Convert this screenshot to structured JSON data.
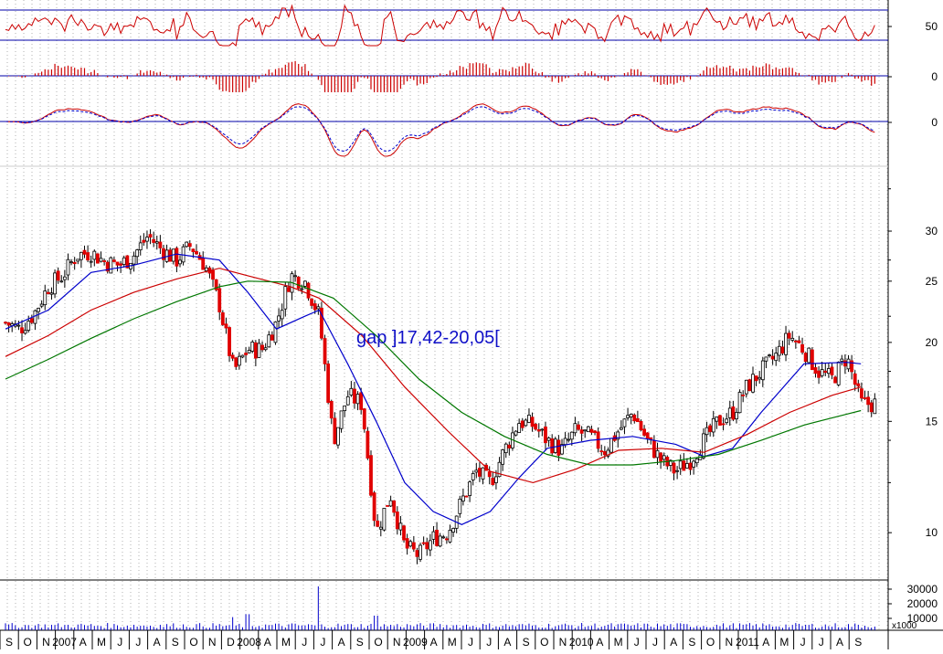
{
  "chart_data": {
    "type": "candlestick",
    "title": "",
    "annotation": "gap ]17,42-20,05[",
    "colors": {
      "up_body": "#ffffff",
      "down_body": "#e00000",
      "wick": "#000000",
      "ma_short": "#0000cc",
      "ma_medium": "#cc0000",
      "ma_long": "#007700",
      "panel_line": "#0000aa",
      "grid": "#b0b0b0",
      "indicator_line": "#cc0000",
      "volume_bar": "#0000cc"
    },
    "x_axis": {
      "labels": [
        "S",
        "O",
        "N",
        "2007",
        "A",
        "M",
        "J",
        "J",
        "A",
        "S",
        "O",
        "N",
        "D",
        "2008",
        "A",
        "M",
        "J",
        "J",
        "A",
        "S",
        "O",
        "N",
        "2009",
        "A",
        "M",
        "J",
        "J",
        "A",
        "S",
        "O",
        "N",
        "2010",
        "A",
        "M",
        "J",
        "J",
        "A",
        "S",
        "O",
        "N",
        "2011",
        "A",
        "M",
        "J",
        "J",
        "A",
        "S"
      ],
      "start": "2006-08",
      "end": "2011-09"
    },
    "price_panel": {
      "scale": "log",
      "y_ticks": [
        "30",
        "25",
        "20",
        "15",
        "10"
      ],
      "y_range": [
        8.5,
        37
      ],
      "close": [
        {
          "date": "2006-08",
          "value": 21.5
        },
        {
          "date": "2006-09",
          "value": 21.0
        },
        {
          "date": "2006-10",
          "value": 22.2
        },
        {
          "date": "2006-11",
          "value": 24.5
        },
        {
          "date": "2006-12",
          "value": 25.5
        },
        {
          "date": "2007-01",
          "value": 27.5
        },
        {
          "date": "2007-02",
          "value": 27.8
        },
        {
          "date": "2007-03",
          "value": 26.8
        },
        {
          "date": "2007-04",
          "value": 26.5
        },
        {
          "date": "2007-05",
          "value": 27.5
        },
        {
          "date": "2007-06",
          "value": 29.5
        },
        {
          "date": "2007-07",
          "value": 28.0
        },
        {
          "date": "2007-08",
          "value": 27.0
        },
        {
          "date": "2007-09",
          "value": 28.5
        },
        {
          "date": "2007-10",
          "value": 26.5
        },
        {
          "date": "2007-11",
          "value": 23.0
        },
        {
          "date": "2007-12",
          "value": 18.0
        },
        {
          "date": "2008-01",
          "value": 19.5
        },
        {
          "date": "2008-02",
          "value": 19.5
        },
        {
          "date": "2008-03",
          "value": 21.5
        },
        {
          "date": "2008-04",
          "value": 25.5
        },
        {
          "date": "2008-05",
          "value": 25.0
        },
        {
          "date": "2008-06",
          "value": 22.0
        },
        {
          "date": "2008-07",
          "value": 14.0
        },
        {
          "date": "2008-08",
          "value": 16.5
        },
        {
          "date": "2008-09",
          "value": 16.0
        },
        {
          "date": "2008-10",
          "value": 10.0
        },
        {
          "date": "2008-11",
          "value": 11.5
        },
        {
          "date": "2008-12",
          "value": 9.5
        },
        {
          "date": "2009-01",
          "value": 9.2
        },
        {
          "date": "2009-02",
          "value": 9.8
        },
        {
          "date": "2009-03",
          "value": 10.0
        },
        {
          "date": "2009-04",
          "value": 11.2
        },
        {
          "date": "2009-05",
          "value": 12.5
        },
        {
          "date": "2009-06",
          "value": 12.0
        },
        {
          "date": "2009-07",
          "value": 13.5
        },
        {
          "date": "2009-08",
          "value": 15.0
        },
        {
          "date": "2009-09",
          "value": 14.8
        },
        {
          "date": "2009-10",
          "value": 14.0
        },
        {
          "date": "2009-11",
          "value": 13.5
        },
        {
          "date": "2009-12",
          "value": 14.5
        },
        {
          "date": "2010-01",
          "value": 14.2
        },
        {
          "date": "2010-02",
          "value": 13.5
        },
        {
          "date": "2010-03",
          "value": 14.5
        },
        {
          "date": "2010-04",
          "value": 15.5
        },
        {
          "date": "2010-05",
          "value": 14.0
        },
        {
          "date": "2010-06",
          "value": 13.0
        },
        {
          "date": "2010-07",
          "value": 12.5
        },
        {
          "date": "2010-08",
          "value": 13.0
        },
        {
          "date": "2010-09",
          "value": 14.0
        },
        {
          "date": "2010-10",
          "value": 15.0
        },
        {
          "date": "2010-11",
          "value": 15.5
        },
        {
          "date": "2010-12",
          "value": 17.0
        },
        {
          "date": "2011-01",
          "value": 18.0
        },
        {
          "date": "2011-02",
          "value": 19.0
        },
        {
          "date": "2011-03",
          "value": 20.5
        },
        {
          "date": "2011-04",
          "value": 19.5
        },
        {
          "date": "2011-05",
          "value": 18.0
        },
        {
          "date": "2011-06",
          "value": 17.5
        },
        {
          "date": "2011-07",
          "value": 19.0
        },
        {
          "date": "2011-08",
          "value": 16.0
        }
      ],
      "moving_averages": [
        {
          "color": "ma_short",
          "points": [
            {
              "date": "2006-08",
              "value": 21.0
            },
            {
              "date": "2006-11",
              "value": 22.5
            },
            {
              "date": "2007-02",
              "value": 25.8
            },
            {
              "date": "2007-05",
              "value": 26.5
            },
            {
              "date": "2007-08",
              "value": 27.6
            },
            {
              "date": "2007-11",
              "value": 27.0
            },
            {
              "date": "2008-01",
              "value": 24.0
            },
            {
              "date": "2008-03",
              "value": 21.0
            },
            {
              "date": "2008-05",
              "value": 22.0
            },
            {
              "date": "2008-06",
              "value": 22.5
            },
            {
              "date": "2008-08",
              "value": 18.5
            },
            {
              "date": "2008-10",
              "value": 15.0
            },
            {
              "date": "2008-12",
              "value": 12.0
            },
            {
              "date": "2009-02",
              "value": 10.8
            },
            {
              "date": "2009-04",
              "value": 10.3
            },
            {
              "date": "2009-06",
              "value": 10.8
            },
            {
              "date": "2009-08",
              "value": 12.2
            },
            {
              "date": "2009-10",
              "value": 13.6
            },
            {
              "date": "2010-01",
              "value": 14.0
            },
            {
              "date": "2010-04",
              "value": 14.2
            },
            {
              "date": "2010-07",
              "value": 13.8
            },
            {
              "date": "2010-09",
              "value": 13.2
            },
            {
              "date": "2010-11",
              "value": 13.6
            },
            {
              "date": "2011-01",
              "value": 15.5
            },
            {
              "date": "2011-04",
              "value": 18.5
            },
            {
              "date": "2011-07",
              "value": 18.6
            },
            {
              "date": "2011-08",
              "value": 18.5
            }
          ]
        },
        {
          "color": "ma_medium",
          "points": [
            {
              "date": "2006-08",
              "value": 19.0
            },
            {
              "date": "2006-11",
              "value": 20.5
            },
            {
              "date": "2007-02",
              "value": 22.5
            },
            {
              "date": "2007-05",
              "value": 24.0
            },
            {
              "date": "2007-08",
              "value": 25.2
            },
            {
              "date": "2007-11",
              "value": 26.2
            },
            {
              "date": "2008-01",
              "value": 25.5
            },
            {
              "date": "2008-04",
              "value": 24.5
            },
            {
              "date": "2008-06",
              "value": 23.5
            },
            {
              "date": "2008-09",
              "value": 20.5
            },
            {
              "date": "2008-12",
              "value": 17.0
            },
            {
              "date": "2009-03",
              "value": 14.5
            },
            {
              "date": "2009-06",
              "value": 12.5
            },
            {
              "date": "2009-09",
              "value": 12.0
            },
            {
              "date": "2009-12",
              "value": 12.6
            },
            {
              "date": "2010-03",
              "value": 13.5
            },
            {
              "date": "2010-06",
              "value": 13.6
            },
            {
              "date": "2010-09",
              "value": 13.4
            },
            {
              "date": "2010-12",
              "value": 14.3
            },
            {
              "date": "2011-03",
              "value": 15.5
            },
            {
              "date": "2011-06",
              "value": 16.5
            },
            {
              "date": "2011-08",
              "value": 17.0
            }
          ]
        },
        {
          "color": "ma_long",
          "points": [
            {
              "date": "2006-08",
              "value": 17.5
            },
            {
              "date": "2006-11",
              "value": 18.8
            },
            {
              "date": "2007-02",
              "value": 20.3
            },
            {
              "date": "2007-05",
              "value": 21.8
            },
            {
              "date": "2007-08",
              "value": 23.2
            },
            {
              "date": "2007-11",
              "value": 24.5
            },
            {
              "date": "2008-01",
              "value": 25.0
            },
            {
              "date": "2008-04",
              "value": 24.9
            },
            {
              "date": "2008-07",
              "value": 23.5
            },
            {
              "date": "2008-10",
              "value": 20.5
            },
            {
              "date": "2009-01",
              "value": 17.5
            },
            {
              "date": "2009-04",
              "value": 15.5
            },
            {
              "date": "2009-07",
              "value": 14.2
            },
            {
              "date": "2009-10",
              "value": 13.3
            },
            {
              "date": "2010-01",
              "value": 12.8
            },
            {
              "date": "2010-04",
              "value": 12.8
            },
            {
              "date": "2010-07",
              "value": 13.0
            },
            {
              "date": "2010-10",
              "value": 13.3
            },
            {
              "date": "2011-01",
              "value": 14.0
            },
            {
              "date": "2011-04",
              "value": 14.8
            },
            {
              "date": "2011-07",
              "value": 15.4
            },
            {
              "date": "2011-08",
              "value": 15.6
            }
          ]
        }
      ]
    },
    "oscillator_panel": {
      "y_ticks": [
        "50"
      ],
      "reference_level": 50
    },
    "histogram_panel": {
      "y_ticks": [
        "0"
      ]
    },
    "macd_panel": {
      "y_ticks": [
        "0"
      ]
    },
    "volume_panel": {
      "y_ticks": [
        "30000",
        "20000",
        "10000"
      ],
      "unit_label": "x1000",
      "spikes": [
        {
          "date": "2008-06",
          "value": 30000
        },
        {
          "date": "2007-12",
          "value": 9000
        },
        {
          "date": "2008-01",
          "value": 11000
        },
        {
          "date": "2008-10",
          "value": 10000
        }
      ]
    }
  }
}
